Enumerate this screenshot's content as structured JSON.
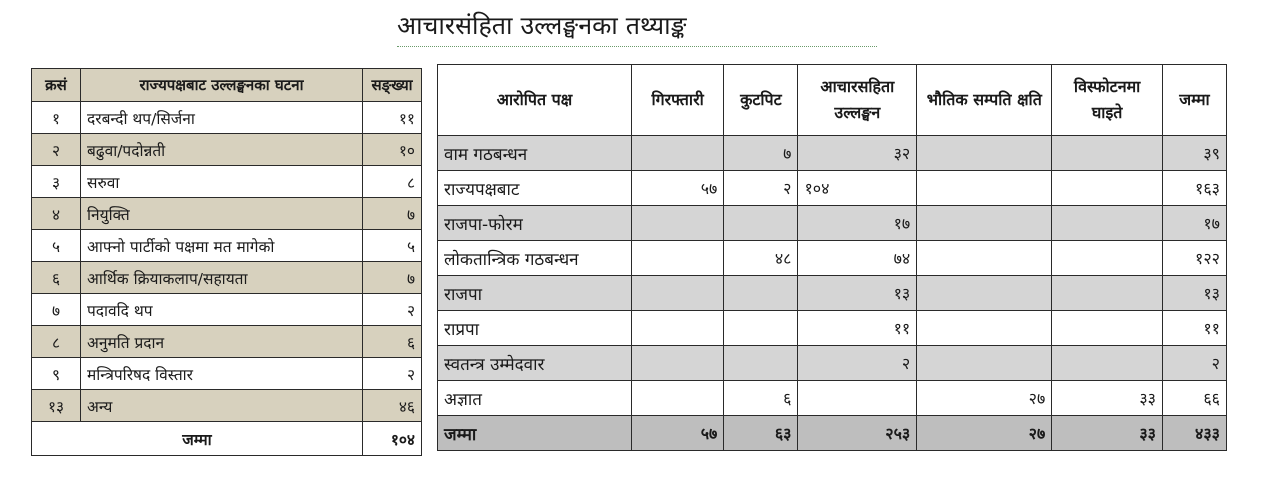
{
  "title": "आचारसंहिता उल्लङ्घनका तथ्याङ्क",
  "left_table": {
    "headers": [
      "क्रसं",
      "राज्यपक्षबाट उल्लङ्घनका घटना",
      "सङ्ख्या"
    ],
    "rows": [
      {
        "sn": "१",
        "event": "दरबन्दी थप/सिर्जना",
        "count": "११"
      },
      {
        "sn": "२",
        "event": "बढुवा/पदोन्नती",
        "count": "१०"
      },
      {
        "sn": "३",
        "event": "सरुवा",
        "count": "८"
      },
      {
        "sn": "४",
        "event": "नियुक्ति",
        "count": "७"
      },
      {
        "sn": "५",
        "event": "आफ्नो पार्टीको पक्षमा मत मागेको",
        "count": "५"
      },
      {
        "sn": "६",
        "event": "आर्थिक क्रियाकलाप/सहायता",
        "count": "७"
      },
      {
        "sn": "७",
        "event": "पदावदि थप",
        "count": "२"
      },
      {
        "sn": "८",
        "event": "अनुमति प्रदान",
        "count": "६"
      },
      {
        "sn": "९",
        "event": "मन्त्रिपरिषद विस्तार",
        "count": "२"
      },
      {
        "sn": "१३",
        "event": "अन्य",
        "count": "४६"
      }
    ],
    "total_label": "जम्मा",
    "total_value": "१०४"
  },
  "right_table": {
    "headers": [
      "आरोपित पक्ष",
      "गिरफ्तारी",
      "कुटपिट",
      "आचारसहिता उल्लङ्घन",
      "भौतिक सम्पति क्षति",
      "विस्फोटनमा घाइते",
      "जम्मा"
    ],
    "rows": [
      {
        "party": "वाम गठबन्धन",
        "arrest": "",
        "assault": "७",
        "violation": "३२",
        "damage": "",
        "blast": "",
        "total": "३९"
      },
      {
        "party": "राज्यपक्षबाट",
        "arrest": "५७",
        "assault": "२",
        "violation": "१०४",
        "damage": "",
        "blast": "",
        "total": "१६३"
      },
      {
        "party": "राजपा-फोरम",
        "arrest": "",
        "assault": "",
        "violation": "१७",
        "damage": "",
        "blast": "",
        "total": "१७"
      },
      {
        "party": "लोकतान्त्रिक गठबन्धन",
        "arrest": "",
        "assault": "४८",
        "violation": "७४",
        "damage": "",
        "blast": "",
        "total": "१२२"
      },
      {
        "party": "राजपा",
        "arrest": "",
        "assault": "",
        "violation": "१३",
        "damage": "",
        "blast": "",
        "total": "१३"
      },
      {
        "party": "राप्रपा",
        "arrest": "",
        "assault": "",
        "violation": "११",
        "damage": "",
        "blast": "",
        "total": "११"
      },
      {
        "party": "स्वतन्त्र उम्मेदवार",
        "arrest": "",
        "assault": "",
        "violation": "२",
        "damage": "",
        "blast": "",
        "total": "२"
      },
      {
        "party": "अज्ञात",
        "arrest": "",
        "assault": "६",
        "violation": "",
        "damage": "२७",
        "blast": "३३",
        "total": "६६"
      }
    ],
    "total_row": {
      "party": "जम्मा",
      "arrest": "५७",
      "assault": "६३",
      "violation": "२५३",
      "damage": "२७",
      "blast": "३३",
      "total": "४३३"
    }
  }
}
